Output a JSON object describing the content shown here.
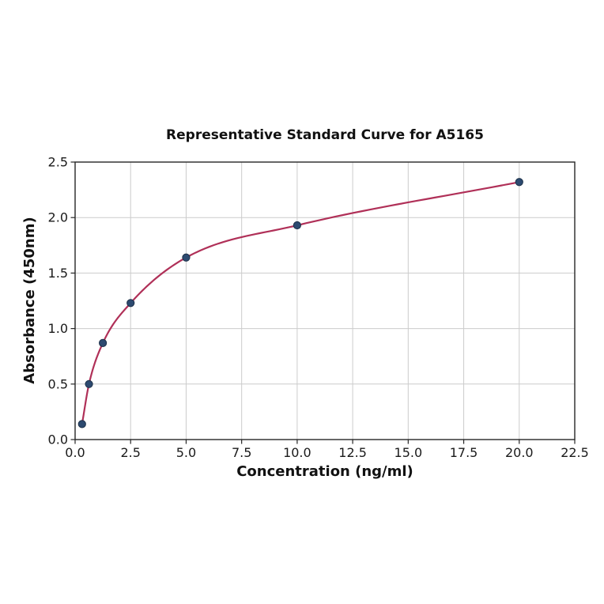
{
  "chart_data": {
    "type": "scatter",
    "title": "Representative Standard Curve for A5165",
    "xlabel": "Concentration (ng/ml)",
    "ylabel": "Absorbance (450nm)",
    "x": [
      0.313,
      0.625,
      1.25,
      2.5,
      5.0,
      10.0,
      20.0
    ],
    "y": [
      0.14,
      0.5,
      0.87,
      1.23,
      1.64,
      1.93,
      2.32
    ],
    "fit_line": "smooth saturating curve through all points",
    "xlim": [
      0,
      22.5
    ],
    "ylim": [
      0,
      2.5
    ],
    "x_ticks": [
      "0.0",
      "2.5",
      "5.0",
      "7.5",
      "10.0",
      "12.5",
      "15.0",
      "17.5",
      "20.0",
      "22.5"
    ],
    "y_ticks": [
      "0.0",
      "0.5",
      "1.0",
      "1.5",
      "2.0",
      "2.5"
    ],
    "grid": true,
    "legend": "none",
    "colors": {
      "curve": "#b03058",
      "marker": "#2d4a70",
      "marker_edge": "#1c3048",
      "grid": "#cccccc",
      "spine": "#262626",
      "text": "#1a1a1a",
      "background": "#ffffff"
    }
  }
}
